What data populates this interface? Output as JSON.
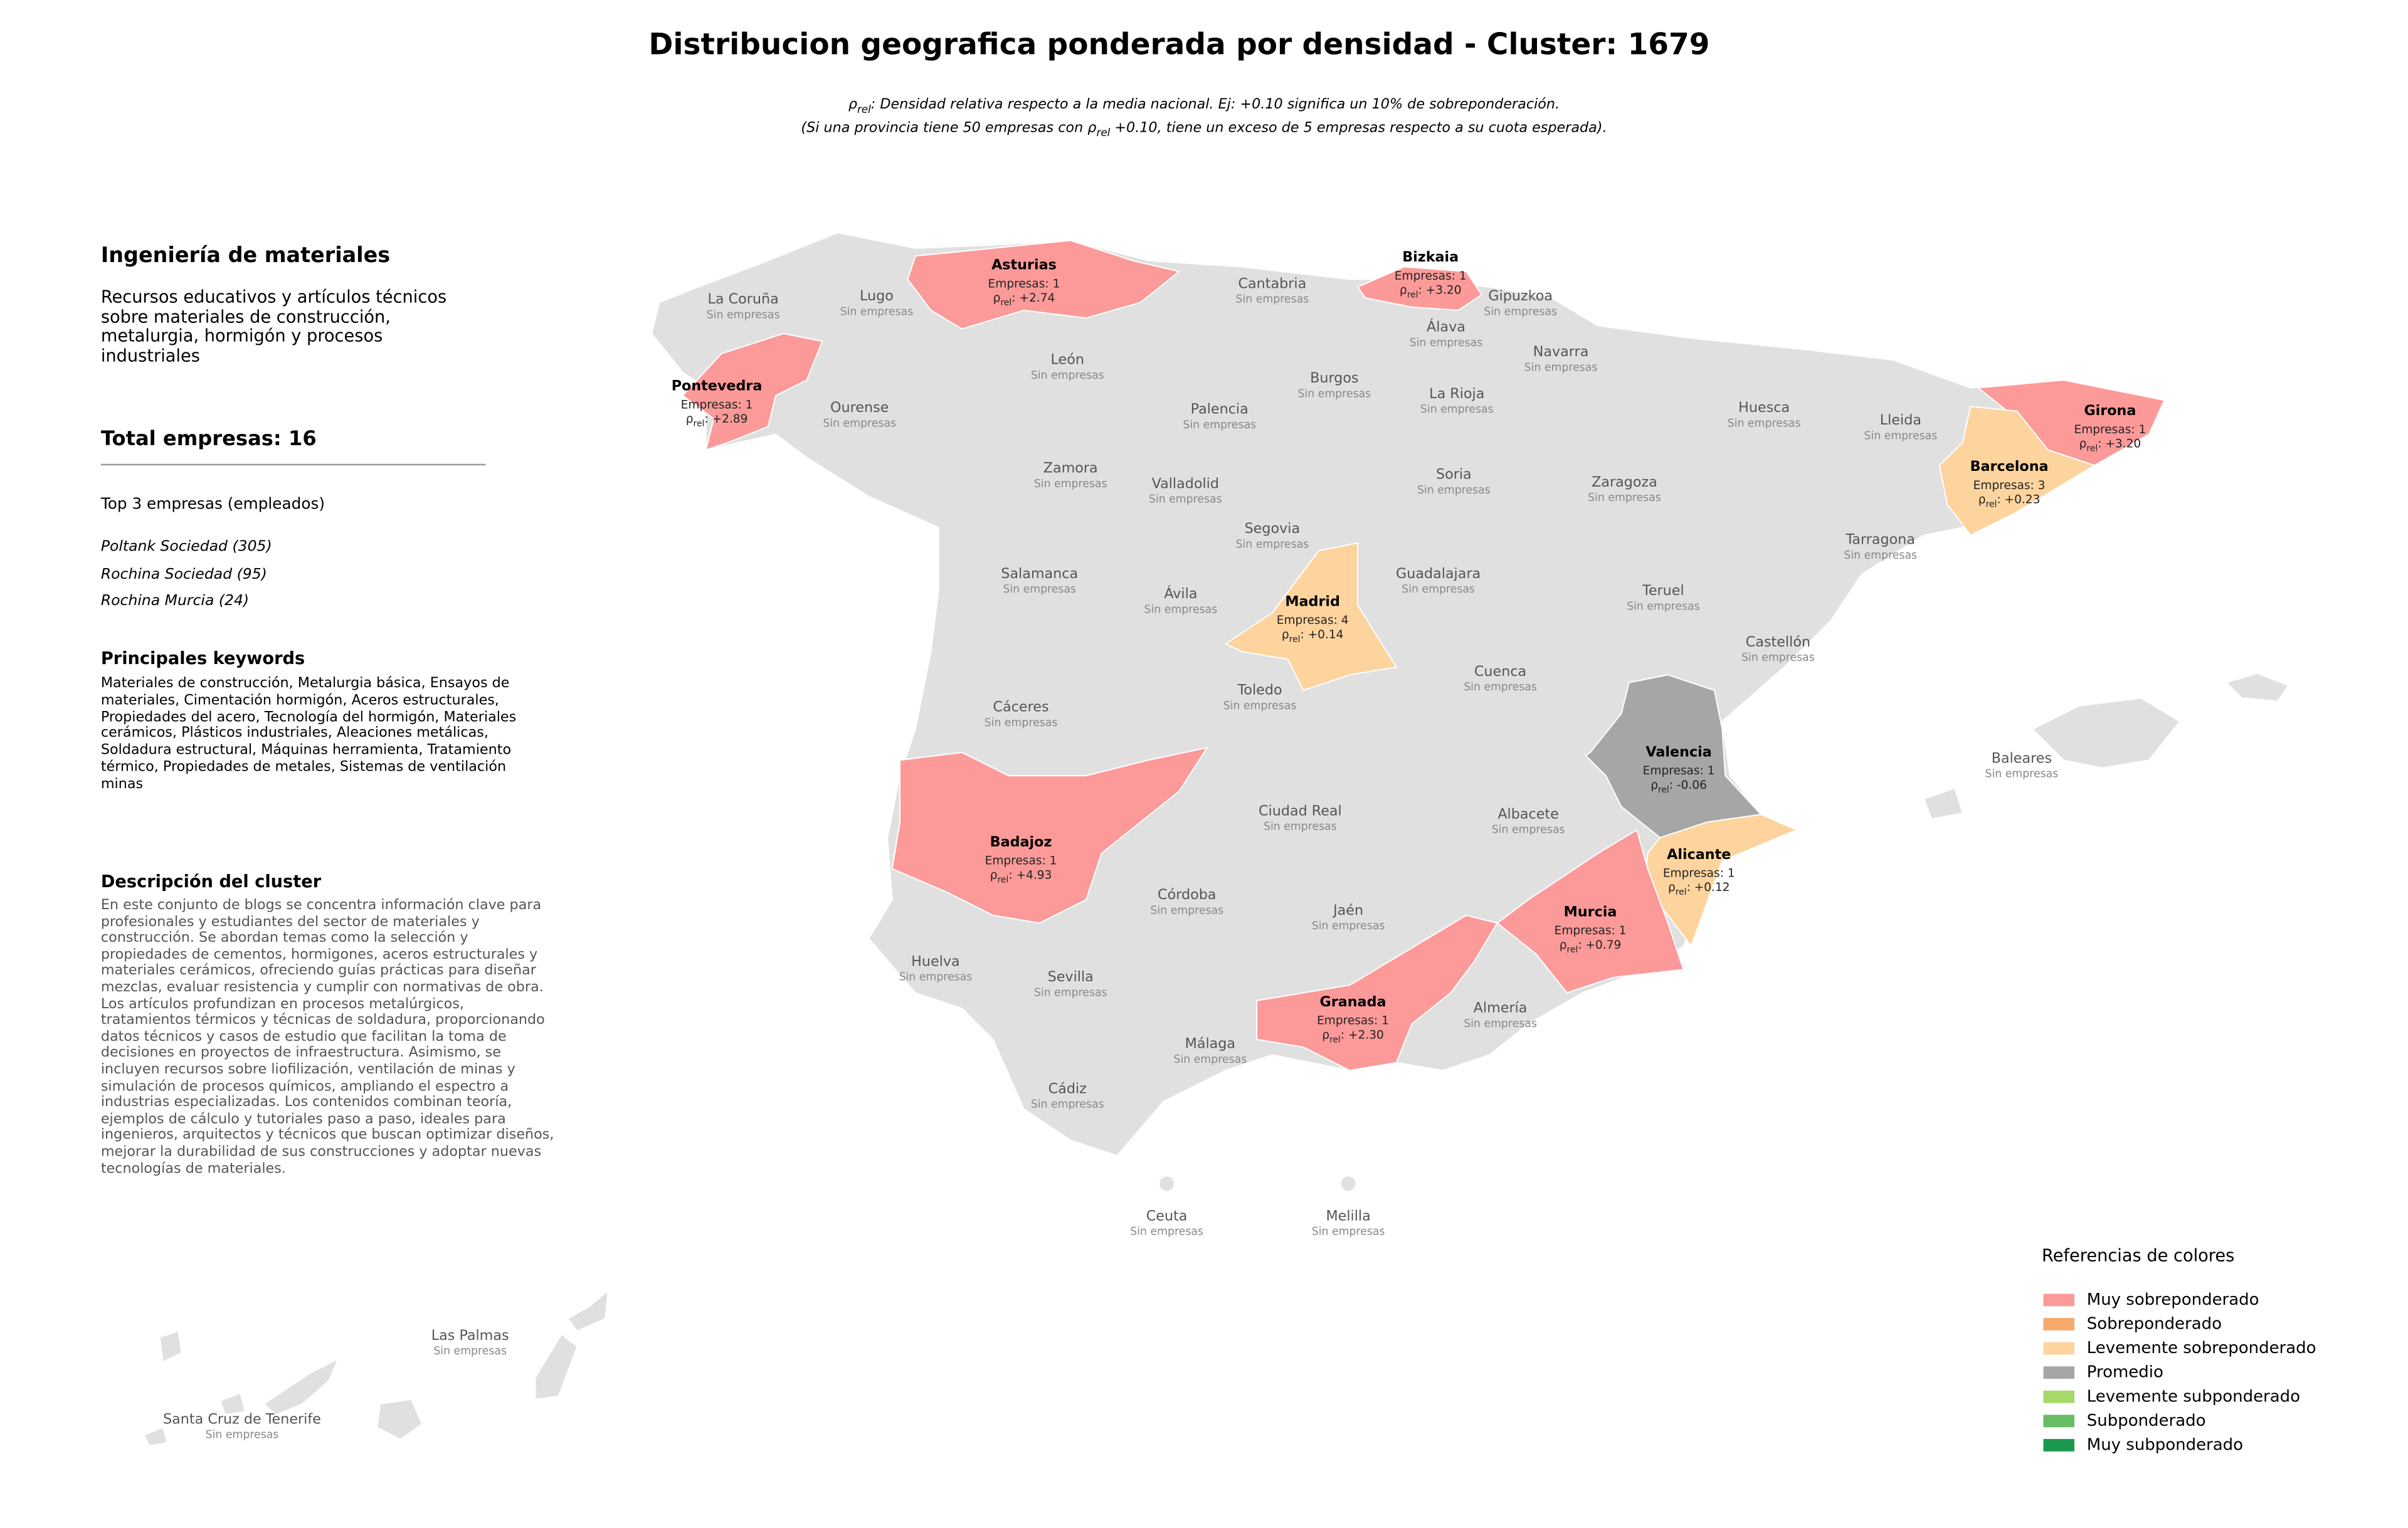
{
  "title": "Distribucion geografica ponderada por densidad - Cluster: 1679",
  "subtitle": [
    [
      {
        "text": "ρ"
      },
      {
        "sub": "rel"
      },
      {
        "text": ": Densidad relativa respecto a la media nacional. Ej: +0.10 significa un 10% de sobreponderación."
      }
    ],
    [
      {
        "text": "(Si una provincia tiene 50 empresas con ρ"
      },
      {
        "sub": "rel"
      },
      {
        "text": " +0.10, tiene un exceso de 5 empresas respecto a su cuota esperada)."
      }
    ]
  ],
  "sidebar": {
    "cluster_name": "Ingeniería de materiales",
    "cluster_summary": "Recursos educativos y artículos técnicos sobre materiales de construcción, metalurgia, hormigón y procesos industriales",
    "total": "Total empresas: 16",
    "top_title": "Top 3 empresas (empleados)",
    "top": [
      "Poltank Sociedad (305)",
      "Rochina Sociedad (95)",
      "Rochina Murcia (24)"
    ],
    "keywords_title": "Principales keywords",
    "keywords": "Materiales de construcción, Metalurgia básica, Ensayos de materiales, Cimentación hormigón, Aceros estructurales, Propiedades del acero, Tecnología del hormigón, Materiales cerámicos, Plásticos industriales, Aleaciones metálicas, Soldadura estructural, Máquinas herramienta, Tratamiento térmico, Propiedades de metales, Sistemas de ventilación minas",
    "description_title": "Descripción del cluster",
    "description": "En este conjunto de blogs se concentra información clave para profesionales y estudiantes del sector de materiales y construcción. Se abordan temas como la selección y propiedades de cementos, hormigones, aceros estructurales y materiales cerámicos, ofreciendo guías prácticas para diseñar mezclas, evaluar resistencia y cumplir con normativas de obra. Los artículos profundizan en procesos metalúrgicos, tratamientos térmicos y técnicas de soldadura, proporcionando datos técnicos y casos de estudio que facilitan la toma de decisiones en proyectos de infraestructura. Asimismo, se incluyen recursos sobre liofilización, ventilación de minas y simulación de procesos químicos, ampliando el espectro a industrias especializadas. Los contenidos combinan teoría, ejemplos de cálculo y tutoriales paso a paso, ideales para ingenieros, arquitectos y técnicos que buscan optimizar diseños, mejorar la durabilidad de sus construcciones y adoptar nuevas tecnologías de materiales."
  },
  "legend": {
    "title": "Referencias de colores",
    "items": [
      {
        "label": "Muy sobreponderado",
        "color": "#fb9a99"
      },
      {
        "label": "Sobreponderado",
        "color": "#f6a96b"
      },
      {
        "label": "Levemente sobreponderado",
        "color": "#fdd49e"
      },
      {
        "label": "Promedio",
        "color": "#a6a6a6"
      },
      {
        "label": "Levemente subponderado",
        "color": "#a6d96a"
      },
      {
        "label": "Subponderado",
        "color": "#66bd63"
      },
      {
        "label": "Muy subponderado",
        "color": "#1a9850"
      }
    ]
  },
  "provinces": [
    {
      "name": "La Coruña",
      "status": "Sin empresas"
    },
    {
      "name": "Lugo",
      "status": "Sin empresas"
    },
    {
      "name": "Asturias",
      "companies": "Empresas: 1",
      "rho": [
        {
          "text": "ρ"
        },
        {
          "sub": "rel"
        },
        {
          "text": ": +2.74"
        }
      ],
      "category": 0
    },
    {
      "name": "Cantabria",
      "status": "Sin empresas"
    },
    {
      "name": "Bizkaia",
      "companies": "Empresas: 1",
      "rho": [
        {
          "text": "ρ"
        },
        {
          "sub": "rel"
        },
        {
          "text": ": +3.20"
        }
      ],
      "category": 0
    },
    {
      "name": "Gipuzkoa",
      "status": "Sin empresas"
    },
    {
      "name": "Álava",
      "status": "Sin empresas"
    },
    {
      "name": "Navarra",
      "status": "Sin empresas"
    },
    {
      "name": "Pontevedra",
      "companies": "Empresas: 1",
      "rho": [
        {
          "text": "ρ"
        },
        {
          "sub": "rel"
        },
        {
          "text": ": +2.89"
        }
      ],
      "category": 0
    },
    {
      "name": "Ourense",
      "status": "Sin empresas"
    },
    {
      "name": "León",
      "status": "Sin empresas"
    },
    {
      "name": "Palencia",
      "status": "Sin empresas"
    },
    {
      "name": "Burgos",
      "status": "Sin empresas"
    },
    {
      "name": "La Rioja",
      "status": "Sin empresas"
    },
    {
      "name": "Huesca",
      "status": "Sin empresas"
    },
    {
      "name": "Lleida",
      "status": "Sin empresas"
    },
    {
      "name": "Girona",
      "companies": "Empresas: 1",
      "rho": [
        {
          "text": "ρ"
        },
        {
          "sub": "rel"
        },
        {
          "text": ": +3.20"
        }
      ],
      "category": 0
    },
    {
      "name": "Barcelona",
      "companies": "Empresas: 3",
      "rho": [
        {
          "text": "ρ"
        },
        {
          "sub": "rel"
        },
        {
          "text": ": +0.23"
        }
      ],
      "category": 2
    },
    {
      "name": "Zamora",
      "status": "Sin empresas"
    },
    {
      "name": "Valladolid",
      "status": "Sin empresas"
    },
    {
      "name": "Soria",
      "status": "Sin empresas"
    },
    {
      "name": "Zaragoza",
      "status": "Sin empresas"
    },
    {
      "name": "Tarragona",
      "status": "Sin empresas"
    },
    {
      "name": "Segovia",
      "status": "Sin empresas"
    },
    {
      "name": "Salamanca",
      "status": "Sin empresas"
    },
    {
      "name": "Ávila",
      "status": "Sin empresas"
    },
    {
      "name": "Madrid",
      "companies": "Empresas: 4",
      "rho": [
        {
          "text": "ρ"
        },
        {
          "sub": "rel"
        },
        {
          "text": ": +0.14"
        }
      ],
      "category": 2
    },
    {
      "name": "Guadalajara",
      "status": "Sin empresas"
    },
    {
      "name": "Teruel",
      "status": "Sin empresas"
    },
    {
      "name": "Castellón",
      "status": "Sin empresas"
    },
    {
      "name": "Cáceres",
      "status": "Sin empresas"
    },
    {
      "name": "Toledo",
      "status": "Sin empresas"
    },
    {
      "name": "Cuenca",
      "status": "Sin empresas"
    },
    {
      "name": "Valencia",
      "companies": "Empresas: 1",
      "rho": [
        {
          "text": "ρ"
        },
        {
          "sub": "rel"
        },
        {
          "text": ": -0.06"
        }
      ],
      "category": 3
    },
    {
      "name": "Baleares",
      "status": "Sin empresas"
    },
    {
      "name": "Badajoz",
      "companies": "Empresas: 1",
      "rho": [
        {
          "text": "ρ"
        },
        {
          "sub": "rel"
        },
        {
          "text": ": +4.93"
        }
      ],
      "category": 0
    },
    {
      "name": "Ciudad Real",
      "status": "Sin empresas"
    },
    {
      "name": "Albacete",
      "status": "Sin empresas"
    },
    {
      "name": "Alicante",
      "companies": "Empresas: 1",
      "rho": [
        {
          "text": "ρ"
        },
        {
          "sub": "rel"
        },
        {
          "text": ": +0.12"
        }
      ],
      "category": 2
    },
    {
      "name": "Huelva",
      "status": "Sin empresas"
    },
    {
      "name": "Córdoba",
      "status": "Sin empresas"
    },
    {
      "name": "Jaén",
      "status": "Sin empresas"
    },
    {
      "name": "Murcia",
      "companies": "Empresas: 1",
      "rho": [
        {
          "text": "ρ"
        },
        {
          "sub": "rel"
        },
        {
          "text": ": +0.79"
        }
      ],
      "category": 0
    },
    {
      "name": "Sevilla",
      "status": "Sin empresas"
    },
    {
      "name": "Granada",
      "companies": "Empresas: 1",
      "rho": [
        {
          "text": "ρ"
        },
        {
          "sub": "rel"
        },
        {
          "text": ": +2.30"
        }
      ],
      "category": 0
    },
    {
      "name": "Almería",
      "status": "Sin empresas"
    },
    {
      "name": "Málaga",
      "status": "Sin empresas"
    },
    {
      "name": "Cádiz",
      "status": "Sin empresas"
    },
    {
      "name": "Ceuta",
      "status": "Sin empresas"
    },
    {
      "name": "Melilla",
      "status": "Sin empresas"
    },
    {
      "name": "Las Palmas",
      "status": "Sin empresas"
    },
    {
      "name": "Santa Cruz de Tenerife",
      "status": "Sin empresas"
    }
  ]
}
